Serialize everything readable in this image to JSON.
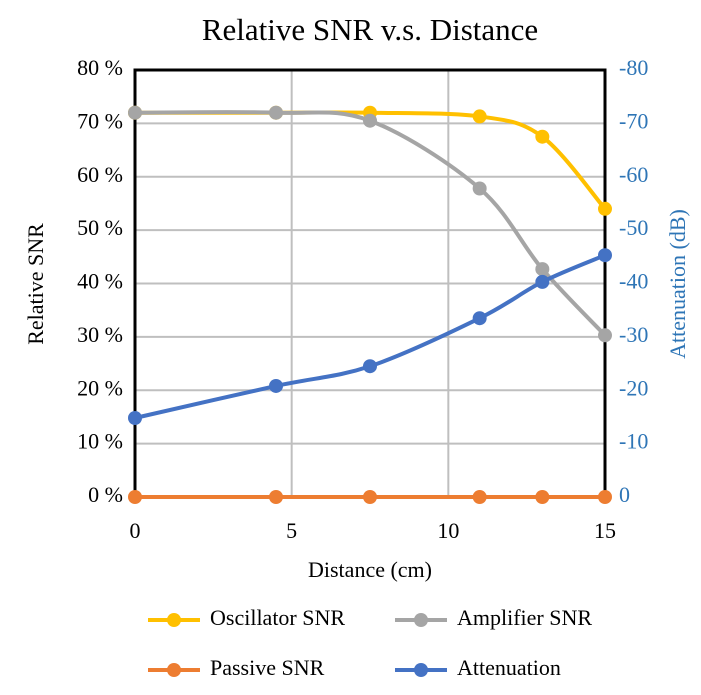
{
  "chart_data": {
    "type": "line",
    "title": "Relative SNR v.s. Distance",
    "x_label": "Distance (cm)",
    "y_label": "Relative SNR",
    "y2_label": "Attenuation (dB)",
    "x": [
      0,
      4.5,
      7.5,
      11,
      13,
      15
    ],
    "xlim": [
      0,
      15
    ],
    "xticks": [
      0,
      5,
      10,
      15
    ],
    "ylim": [
      0,
      80
    ],
    "yticks": [
      {
        "value": 0,
        "label": "0 %"
      },
      {
        "value": 10,
        "label": "10 %"
      },
      {
        "value": 20,
        "label": "20 %"
      },
      {
        "value": 30,
        "label": "30 %"
      },
      {
        "value": 40,
        "label": "40 %"
      },
      {
        "value": 50,
        "label": "50 %"
      },
      {
        "value": 60,
        "label": "60 %"
      },
      {
        "value": 70,
        "label": "70 %"
      },
      {
        "value": 80,
        "label": "80 %"
      }
    ],
    "y2lim": [
      0,
      -80
    ],
    "y2ticks": [
      0,
      -10,
      -20,
      -30,
      -40,
      -50,
      -60,
      -70,
      -80
    ],
    "y2_color": "#2E75B6",
    "grid": true,
    "series": [
      {
        "name": "Oscillator SNR",
        "color": "#FFC000",
        "values": [
          72,
          72,
          72,
          71.3,
          67.5,
          54
        ]
      },
      {
        "name": "Amplifier SNR",
        "color": "#A5A5A5",
        "values": [
          72,
          72,
          70.5,
          57.8,
          42.7,
          30.3
        ]
      },
      {
        "name": "Passive SNR",
        "color": "#ED7D31",
        "values": [
          0,
          0,
          0,
          0,
          0,
          0
        ]
      },
      {
        "name": "Attenuation",
        "color": "#4472C4",
        "axis": "y2",
        "values": [
          -14.8,
          -20.8,
          -24.5,
          -33.5,
          -40.3,
          -45.3
        ]
      }
    ]
  }
}
